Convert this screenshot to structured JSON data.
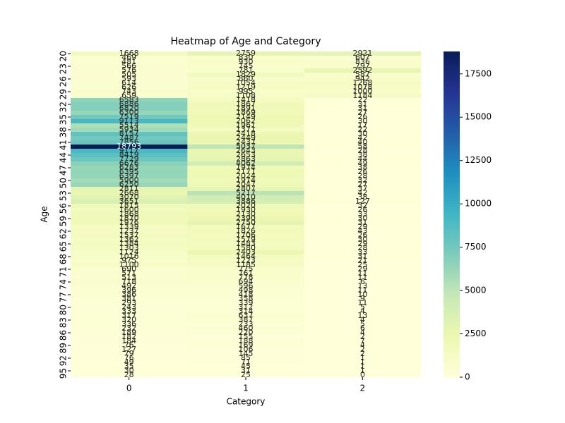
{
  "chart_data": {
    "type": "heatmap",
    "title": "Heatmap of Age and Category",
    "x_label": "Category",
    "y_label": "Age",
    "colormap": "YlGnBu",
    "clim": [
      0,
      18793
    ],
    "cticks": [
      0,
      2500,
      5000,
      7500,
      10000,
      12500,
      15000,
      17500
    ],
    "rows": [
      20,
      null,
      null,
      23,
      null,
      null,
      26,
      null,
      null,
      29,
      null,
      null,
      32,
      null,
      null,
      35,
      null,
      null,
      38,
      null,
      null,
      41,
      null,
      null,
      44,
      null,
      null,
      47,
      null,
      null,
      50,
      null,
      null,
      53,
      null,
      null,
      56,
      null,
      null,
      59,
      null,
      null,
      62,
      null,
      null,
      65,
      null,
      null,
      68,
      null,
      null,
      71,
      null,
      null,
      74,
      null,
      null,
      77,
      null,
      null,
      80,
      null,
      null,
      83,
      null,
      null,
      86,
      null,
      null,
      89,
      null,
      null,
      92,
      null,
      null,
      95,
      null
    ],
    "series": [
      {
        "name": "0",
        "values": [
          1668,
          469,
          481,
          566,
          576,
          505,
          593,
          614,
          626,
          743,
          659,
          6583,
          6886,
          6820,
          6300,
          7519,
          9113,
          5514,
          5934,
          8157,
          7487,
          7856,
          18793,
          9117,
          8419,
          7729,
          6676,
          6283,
          6395,
          6397,
          5900,
          6250,
          2811,
          2668,
          3070,
          3651,
          1815,
          1600,
          1868,
          1870,
          1976,
          1339,
          1237,
          1537,
          1362,
          1384,
          1303,
          1124,
          1016,
          975,
          1100,
          690,
          571,
          513,
          718,
          492,
          396,
          386,
          381,
          293,
          243,
          333,
          317,
          320,
          336,
          232,
          189,
          182,
          184,
          76,
          127,
          79,
          76,
          49,
          35,
          30,
          28
        ]
      },
      {
        "name": "1",
        "values": [
          2759,
          830,
          930,
          745,
          781,
          1829,
          860,
          1054,
          1219,
          995,
          1108,
          1418,
          1867,
          1891,
          1869,
          2149,
          2062,
          1961,
          1371,
          2418,
          2449,
          2437,
          5037,
          2643,
          2653,
          2863,
          4062,
          1974,
          2171,
          2024,
          1974,
          2047,
          2807,
          5217,
          4010,
          3886,
          2020,
          1930,
          2130,
          2390,
          2750,
          1677,
          1826,
          1706,
          1579,
          1483,
          1580,
          2403,
          1464,
          1223,
          1185,
          775,
          761,
          778,
          694,
          596,
          498,
          418,
          358,
          339,
          312,
          314,
          637,
          387,
          233,
          460,
          220,
          155,
          188,
          169,
          106,
          145,
          85,
          71,
          45,
          31,
          25
        ]
      },
      {
        "name": "2",
        "values": [
          2921,
          607,
          836,
          797,
          2592,
          587,
          942,
          1268,
          1078,
          1000,
          1184,
          22,
          31,
          31,
          27,
          26,
          30,
          17,
          22,
          30,
          42,
          40,
          58,
          28,
          38,
          44,
          49,
          38,
          26,
          28,
          32,
          27,
          37,
          42,
          38,
          127,
          32,
          26,
          33,
          30,
          31,
          29,
          43,
          26,
          30,
          29,
          28,
          33,
          31,
          21,
          25,
          29,
          11,
          11,
          6,
          13,
          11,
          10,
          9,
          11,
          5,
          4,
          13,
          4,
          5,
          6,
          4,
          2,
          7,
          4,
          2,
          2,
          1,
          1,
          1,
          1,
          0
        ]
      }
    ]
  }
}
